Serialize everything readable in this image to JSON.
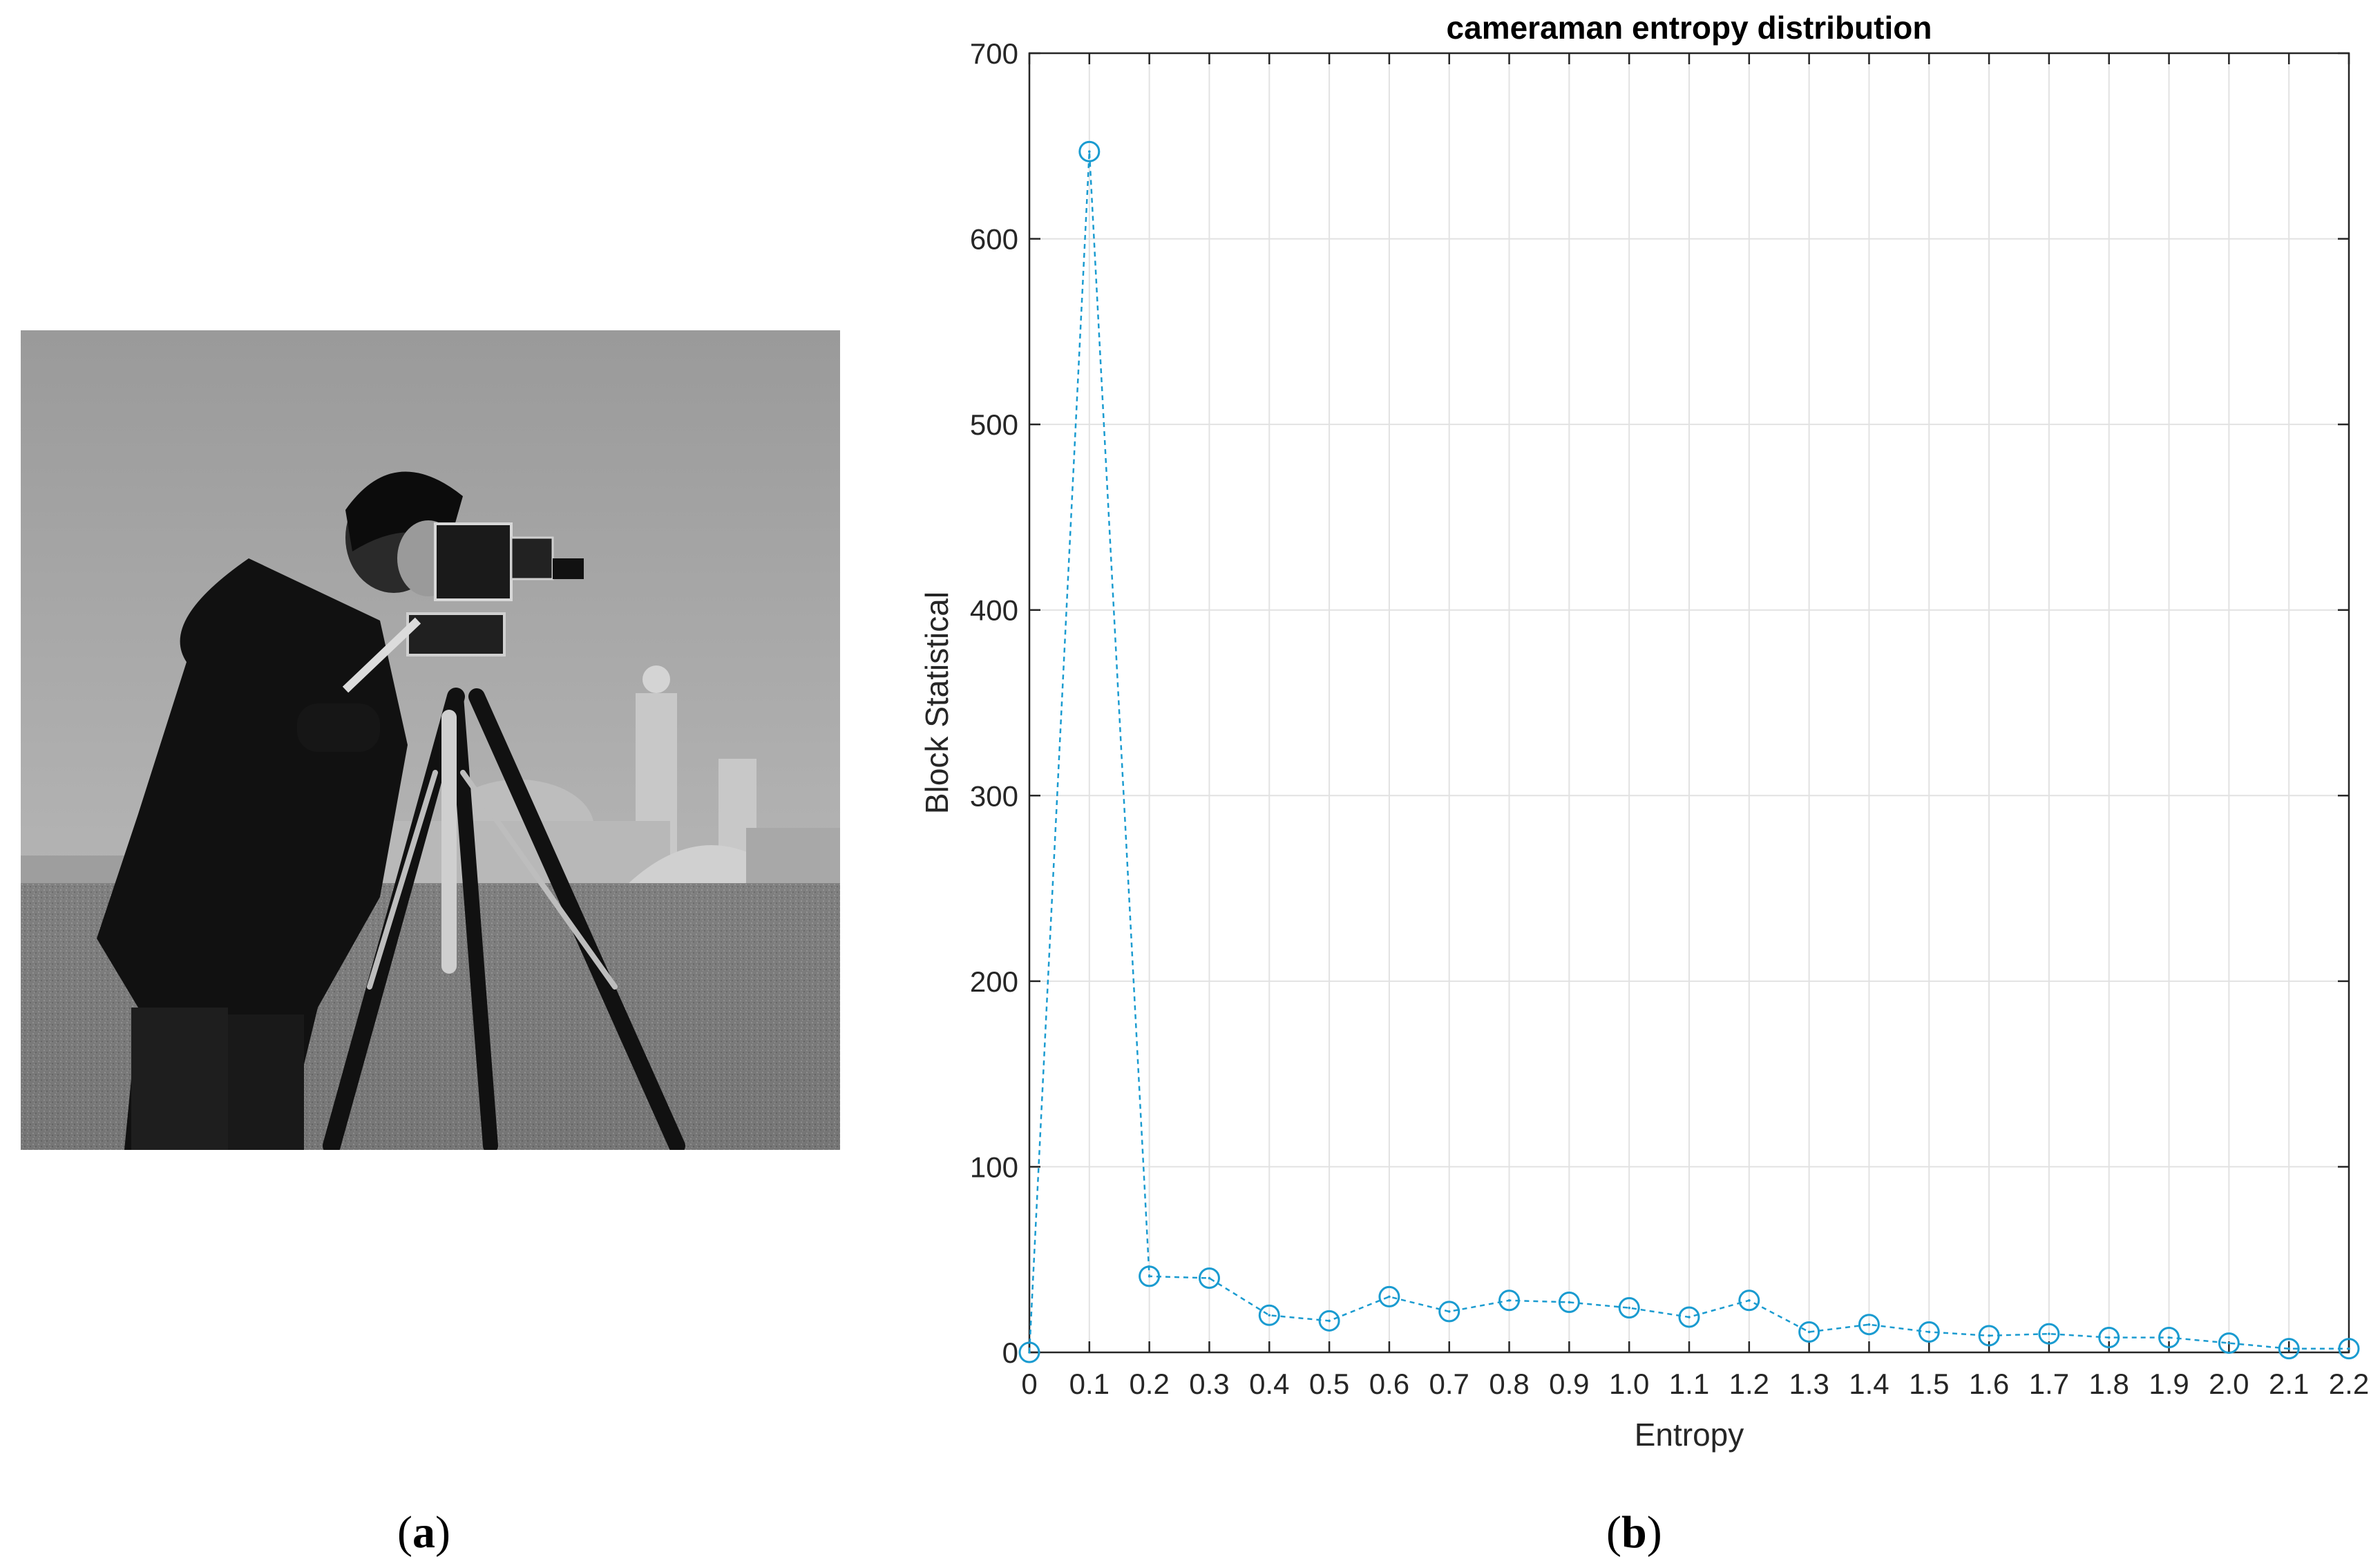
{
  "captions": {
    "a": "a",
    "b": "b"
  },
  "photo": {
    "subject": "cameraman",
    "description": "grayscale photo: man in dark coat operating a camera on a tripod, buildings in background"
  },
  "colors": {
    "series": "#1a9bd0",
    "grid": "#e2e2e2",
    "axis": "#262626"
  },
  "chart_data": {
    "type": "line",
    "title": "cameraman entropy distribution",
    "xlabel": "Entropy",
    "ylabel": "Block Statistical",
    "xlim": [
      0,
      2.2
    ],
    "ylim": [
      0,
      700
    ],
    "xticks": [
      "0",
      "0.1",
      "0.2",
      "0.3",
      "0.4",
      "0.5",
      "0.6",
      "0.7",
      "0.8",
      "0.9",
      "1.0",
      "1.1",
      "1.2",
      "1.3",
      "1.4",
      "1.5",
      "1.6",
      "1.7",
      "1.8",
      "1.9",
      "2.0",
      "2.1",
      "2.2"
    ],
    "yticks": [
      "0",
      "100",
      "200",
      "300",
      "400",
      "500",
      "600",
      "700"
    ],
    "grid": true,
    "line_style": "dashed",
    "marker": "circle",
    "series": [
      {
        "x": [
          0,
          0.1,
          0.2,
          0.3,
          0.4,
          0.5,
          0.6,
          0.7,
          0.8,
          0.9,
          1.0,
          1.1,
          1.2,
          1.3,
          1.4,
          1.5,
          1.6,
          1.7,
          1.8,
          1.9,
          2.0,
          2.1,
          2.2
        ],
        "values": [
          0,
          647,
          41,
          40,
          20,
          17,
          30,
          22,
          28,
          27,
          24,
          19,
          28,
          11,
          15,
          11,
          9,
          10,
          8,
          8,
          5,
          2,
          2
        ]
      }
    ]
  }
}
